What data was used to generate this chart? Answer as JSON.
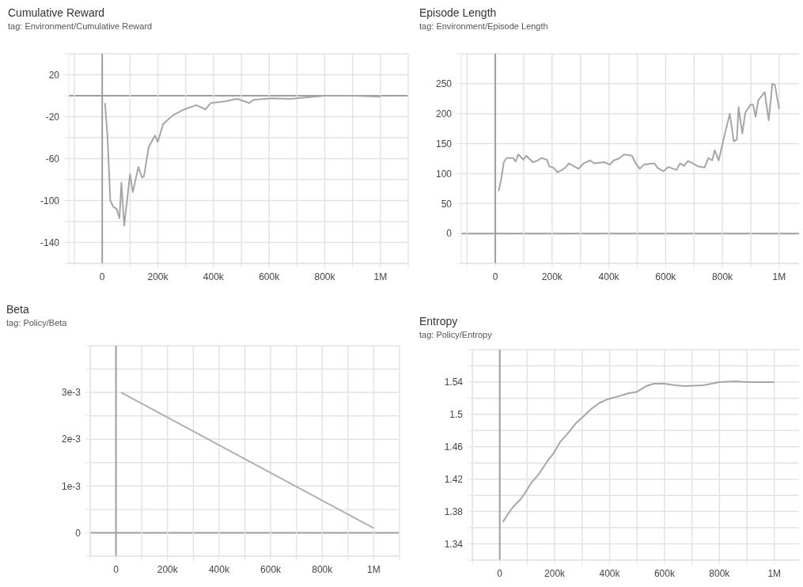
{
  "chart_data": [
    {
      "type": "line",
      "title": "Cumulative Reward",
      "subtitle": "tag: Environment/Cumulative Reward",
      "grid": true,
      "line_style": "solid",
      "xlim": [
        -120000,
        1100000
      ],
      "ylim": [
        -160,
        40
      ],
      "xticks": [
        {
          "value": -100000,
          "label": null
        },
        {
          "value": 0,
          "label": "0"
        },
        {
          "value": 100000,
          "label": null
        },
        {
          "value": 200000,
          "label": "200k"
        },
        {
          "value": 300000,
          "label": null
        },
        {
          "value": 400000,
          "label": "400k"
        },
        {
          "value": 500000,
          "label": null
        },
        {
          "value": 600000,
          "label": "600k"
        },
        {
          "value": 700000,
          "label": null
        },
        {
          "value": 800000,
          "label": "800k"
        },
        {
          "value": 900000,
          "label": null
        },
        {
          "value": 1000000,
          "label": "1M"
        },
        {
          "value": 1100000,
          "label": null
        }
      ],
      "yticks": [
        {
          "value": 40,
          "label": null
        },
        20,
        {
          "value": 0,
          "label": null
        },
        -20,
        {
          "value": -40,
          "label": null
        },
        -60,
        {
          "value": -80,
          "label": null
        },
        -100,
        {
          "value": -120,
          "label": null
        },
        -140,
        {
          "value": -160,
          "label": null
        }
      ],
      "series": [
        {
          "color": "#a6a6a6",
          "x": [
            10000,
            19000,
            29000,
            40000,
            52000,
            62000,
            69000,
            79000,
            100000,
            110000,
            130000,
            143000,
            150000,
            167000,
            190000,
            200000,
            219000,
            252000,
            295000,
            338000,
            371000,
            390000,
            438000,
            486000,
            529000,
            543000,
            610000,
            676000,
            800000,
            900000,
            1000000
          ],
          "values": [
            -7,
            -39,
            -100,
            -106,
            -108,
            -117,
            -83,
            -124,
            -75,
            -92,
            -68,
            -78,
            -77,
            -49,
            -38,
            -44,
            -27,
            -19,
            -13,
            -9,
            -13,
            -7,
            -5.5,
            -3,
            -7,
            -4,
            -2.5,
            -3,
            0,
            0,
            -1
          ]
        }
      ]
    },
    {
      "type": "line",
      "title": "Episode Length",
      "subtitle": "tag: Environment/Episode Length",
      "grid": true,
      "line_style": "solid",
      "xlim": [
        -120000,
        1070000
      ],
      "ylim": [
        -50,
        300
      ],
      "xticks": [
        {
          "value": -100000,
          "label": null
        },
        {
          "value": 0,
          "label": "0"
        },
        {
          "value": 100000,
          "label": null
        },
        {
          "value": 200000,
          "label": "200k"
        },
        {
          "value": 300000,
          "label": null
        },
        {
          "value": 400000,
          "label": "400k"
        },
        {
          "value": 500000,
          "label": null
        },
        {
          "value": 600000,
          "label": "600k"
        },
        {
          "value": 700000,
          "label": null
        },
        {
          "value": 800000,
          "label": "800k"
        },
        {
          "value": 900000,
          "label": null
        },
        {
          "value": 1000000,
          "label": "1M"
        }
      ],
      "yticks": [
        {
          "value": 300,
          "label": null
        },
        250,
        200,
        150,
        100,
        50,
        0,
        {
          "value": -50,
          "label": null
        }
      ],
      "series": [
        {
          "color": "#a6a6a6",
          "x": [
            12000,
            21000,
            30000,
            40000,
            63000,
            72000,
            81000,
            99000,
            109000,
            132000,
            145000,
            164000,
            182000,
            190000,
            205000,
            219000,
            242000,
            260000,
            293000,
            311000,
            334000,
            348000,
            385000,
            403000,
            417000,
            435000,
            454000,
            481000,
            495000,
            509000,
            523000,
            560000,
            573000,
            592000,
            610000,
            638000,
            651000,
            665000,
            678000,
            696000,
            714000,
            737000,
            751000,
            764000,
            773000,
            787000,
            808000,
            826000,
            840000,
            851000,
            857000,
            870000,
            881000,
            899000,
            908000,
            917000,
            926000,
            949000,
            963000,
            976000,
            985000,
            1000000
          ],
          "values": [
            71,
            91,
            119,
            126,
            126,
            120,
            132,
            123,
            130,
            119,
            121,
            126,
            123,
            112,
            110,
            102,
            108,
            117,
            108,
            117,
            122,
            117,
            119,
            115,
            122,
            125,
            132,
            130,
            117,
            108,
            115,
            117,
            109,
            104,
            111,
            106,
            117,
            113,
            121,
            117,
            112,
            110,
            126,
            122,
            139,
            122,
            165,
            200,
            154,
            157,
            211,
            167,
            202,
            215,
            215,
            195,
            222,
            236,
            189,
            250,
            248,
            208
          ]
        }
      ]
    },
    {
      "type": "line",
      "title": "Beta",
      "subtitle": "tag: Policy/Beta",
      "grid": true,
      "line_style": "solid",
      "xlim": [
        -100000,
        1100000
      ],
      "ylim": [
        -0.0005,
        0.004
      ],
      "xticks": [
        {
          "value": -100000,
          "label": null
        },
        {
          "value": 0,
          "label": "0"
        },
        {
          "value": 100000,
          "label": null
        },
        {
          "value": 200000,
          "label": "200k"
        },
        {
          "value": 300000,
          "label": null
        },
        {
          "value": 400000,
          "label": "400k"
        },
        {
          "value": 500000,
          "label": null
        },
        {
          "value": 600000,
          "label": "600k"
        },
        {
          "value": 700000,
          "label": null
        },
        {
          "value": 800000,
          "label": "800k"
        },
        {
          "value": 900000,
          "label": null
        },
        {
          "value": 1000000,
          "label": "1M"
        },
        {
          "value": 1100000,
          "label": null
        }
      ],
      "yticks": [
        {
          "value": 0.004,
          "label": null
        },
        {
          "value": 0.0035,
          "label": null
        },
        {
          "value": 0.003,
          "label": "3e-3"
        },
        {
          "value": 0.0025,
          "label": null
        },
        {
          "value": 0.002,
          "label": "2e-3"
        },
        {
          "value": 0.0015,
          "label": null
        },
        {
          "value": 0.001,
          "label": "1e-3"
        },
        {
          "value": 0.0005,
          "label": null
        },
        0,
        {
          "value": -0.0005,
          "label": null
        }
      ],
      "series": [
        {
          "color": "#b0b0b0",
          "x": [
            20000,
            1000000
          ],
          "values": [
            0.003,
            0.0001
          ]
        }
      ]
    },
    {
      "type": "line",
      "title": "Entropy",
      "subtitle": "tag: Policy/Entropy",
      "grid": true,
      "line_style": "solid",
      "xlim": [
        -100000,
        1090000
      ],
      "ylim": [
        1.32,
        1.58
      ],
      "xticks": [
        {
          "value": -100000,
          "label": null
        },
        {
          "value": 0,
          "label": "0"
        },
        {
          "value": 100000,
          "label": null
        },
        {
          "value": 200000,
          "label": "200k"
        },
        {
          "value": 300000,
          "label": null
        },
        {
          "value": 400000,
          "label": "400k"
        },
        {
          "value": 500000,
          "label": null
        },
        {
          "value": 600000,
          "label": "600k"
        },
        {
          "value": 700000,
          "label": null
        },
        {
          "value": 800000,
          "label": "800k"
        },
        {
          "value": 900000,
          "label": null
        },
        {
          "value": 1000000,
          "label": "1M"
        }
      ],
      "yticks": [
        {
          "value": 1.58,
          "label": null
        },
        {
          "value": 1.56,
          "label": null
        },
        1.54,
        {
          "value": 1.52,
          "label": null
        },
        1.5,
        {
          "value": 1.48,
          "label": null
        },
        1.46,
        {
          "value": 1.44,
          "label": null
        },
        1.42,
        {
          "value": 1.4,
          "label": null
        },
        1.38,
        {
          "value": 1.36,
          "label": null
        },
        1.34,
        {
          "value": 1.32,
          "label": null
        }
      ],
      "series": [
        {
          "color": "#a6a6a6",
          "x": [
            11000,
            30000,
            49000,
            73000,
            92000,
            116000,
            144000,
            173000,
            196000,
            220000,
            249000,
            277000,
            306000,
            334000,
            362000,
            395000,
            429000,
            467000,
            500000,
            533000,
            562000,
            600000,
            638000,
            675000,
            742000,
            800000,
            857000,
            903000,
            1000000
          ],
          "values": [
            1.367,
            1.377,
            1.386,
            1.394,
            1.403,
            1.416,
            1.427,
            1.442,
            1.452,
            1.466,
            1.477,
            1.489,
            1.498,
            1.507,
            1.514,
            1.519,
            1.522,
            1.526,
            1.528,
            1.535,
            1.538,
            1.538,
            1.536,
            1.535,
            1.536,
            1.54,
            1.541,
            1.54,
            1.54
          ]
        }
      ]
    }
  ]
}
